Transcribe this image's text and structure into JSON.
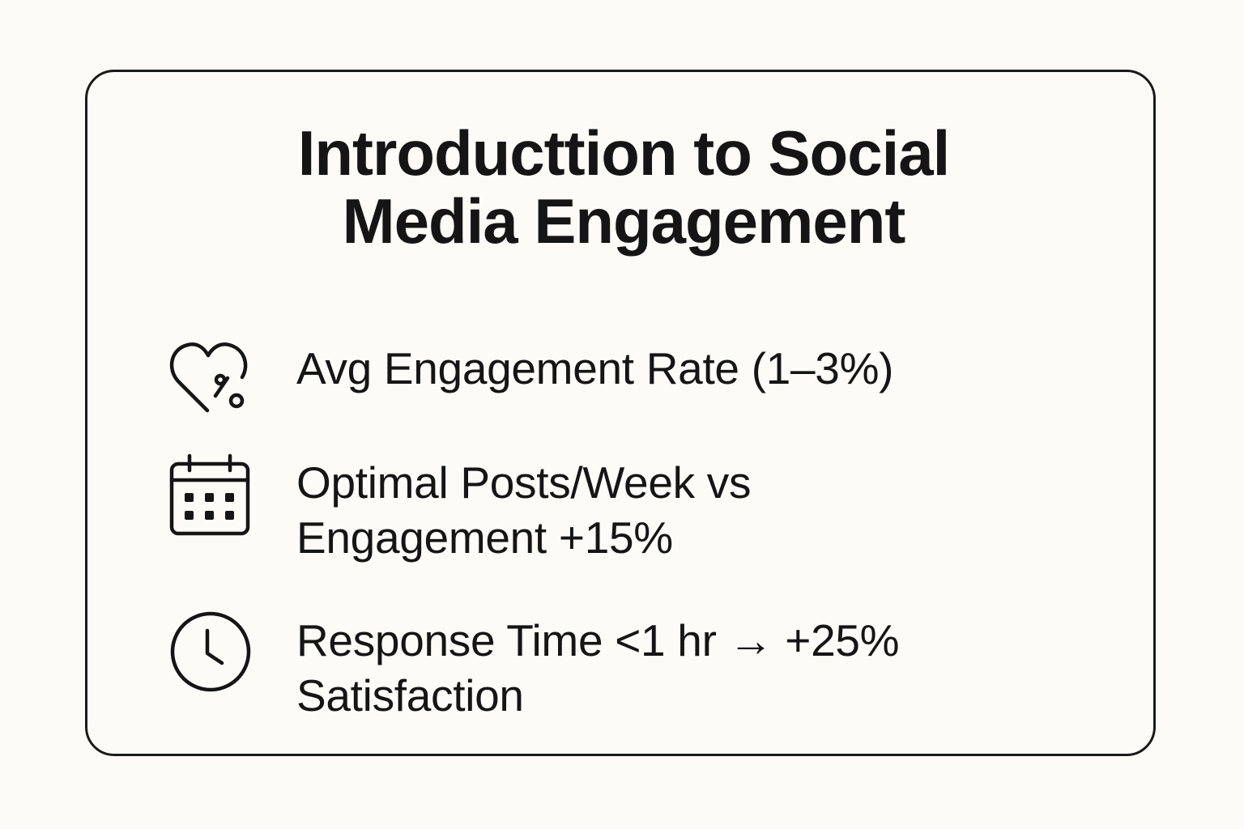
{
  "card": {
    "title_lines": [
      "Introducttion to Social",
      "Media Engagement"
    ]
  },
  "items": [
    {
      "icon": "heart-percent-icon",
      "lines": [
        "Avg Engagement Rate (1–3%)"
      ]
    },
    {
      "icon": "calendar-icon",
      "lines": [
        "Optimal Posts/Week vs",
        "Engagement +15%"
      ]
    },
    {
      "icon": "clock-icon",
      "lines": [
        "Response Time <1 hr → +25%",
        "Satisfaction"
      ]
    }
  ],
  "colors": {
    "ink": "#151515",
    "background": "#fbfaf6"
  }
}
